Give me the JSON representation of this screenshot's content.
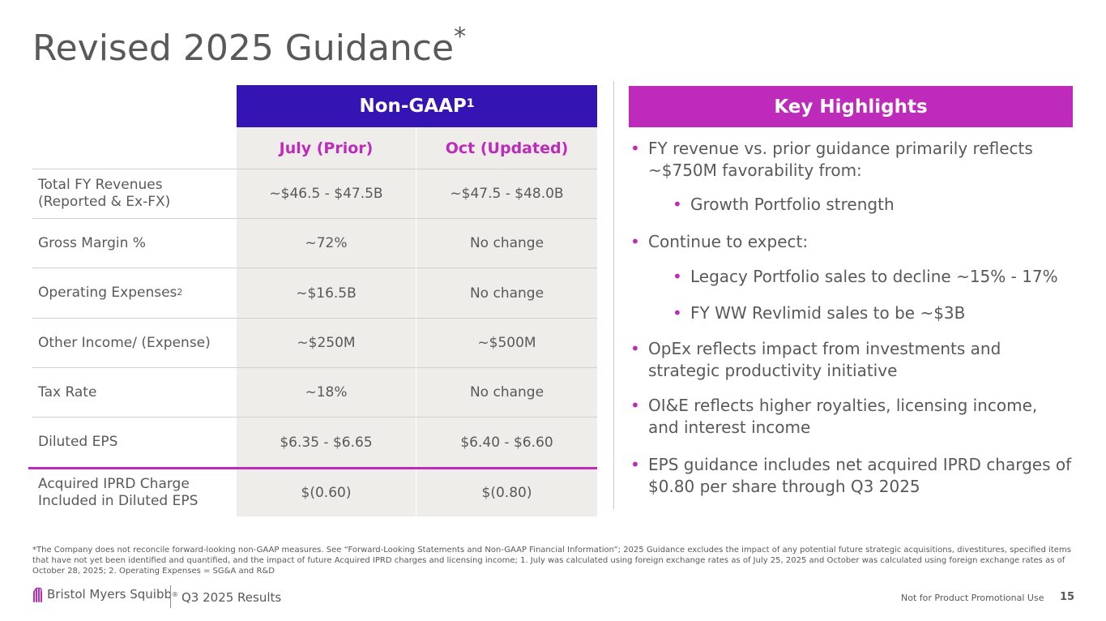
{
  "title": "Revised 2025 Guidance",
  "title_mark": "*",
  "table": {
    "group_header": "Non-GAAP",
    "group_header_note": "1",
    "columns": [
      "July (Prior)",
      "Oct (Updated)"
    ],
    "rows": [
      {
        "label": "Total FY Revenues",
        "label2": "(Reported & Ex-FX)",
        "prior": "~$46.5 - $47.5B",
        "updated": "~$47.5 - $48.0B"
      },
      {
        "label": "Gross Margin %",
        "prior": "~72%",
        "updated": "No change"
      },
      {
        "label": "Operating Expenses",
        "label_note": "2",
        "prior": "~$16.5B",
        "updated": "No change"
      },
      {
        "label": "Other Income/ (Expense)",
        "prior": "~$250M",
        "updated": "~$500M"
      },
      {
        "label": "Tax Rate",
        "prior": "~18%",
        "updated": "No change"
      },
      {
        "label": "Diluted EPS",
        "prior": "$6.35 - $6.65",
        "updated": "$6.40 - $6.60"
      },
      {
        "label": "Acquired IPRD Charge",
        "label2": "Included in Diluted EPS",
        "prior": "$(0.60)",
        "updated": "$(0.80)"
      }
    ]
  },
  "highlights": {
    "header": "Key Highlights",
    "bullet_char": "•",
    "bullets": [
      {
        "line1": "FY revenue vs. prior guidance primarily reflects",
        "line2": "~$750M favorability from:"
      },
      {
        "line1": "Growth Portfolio strength"
      },
      {
        "line1": "Continue to expect:"
      },
      {
        "line1": "Legacy Portfolio sales to decline ~15% - 17%"
      },
      {
        "line1": "FY WW Revlimid sales to be ~$3B"
      },
      {
        "line1": "OpEx reflects impact from investments and",
        "line2": "strategic productivity initiative"
      },
      {
        "line1": "OI&E reflects higher royalties, licensing income,",
        "line2": "and interest income"
      },
      {
        "line1": "EPS guidance includes net acquired IPRD charges of",
        "line2": "$0.80 per share through Q3 2025"
      }
    ]
  },
  "footnote": "*The Company does not reconcile forward-looking non-GAAP measures. See “Forward-Looking Statements and Non-GAAP Financial Information”; 2025 Guidance excludes the impact of any potential future strategic acquisitions, divestitures, specified items that have not yet been identified and quantified, and the impact of future Acquired IPRD charges and licensing income; 1. July was calculated using foreign exchange rates as of July 25, 2025 and October was calculated using foreign exchange rates as of October 28, 2025; 2. Operating Expenses = SG&A and R&D",
  "footer": {
    "logo_text": "Bristol Myers Squibb",
    "logo_reg": "®",
    "deck": "Q3 2025 Results",
    "notice": "Not for Product Promotional Use",
    "page": "15"
  },
  "colors": {
    "navy": "#3415b3",
    "magenta": "#be2bbb",
    "cell": "#efede9",
    "text": "#595959"
  }
}
